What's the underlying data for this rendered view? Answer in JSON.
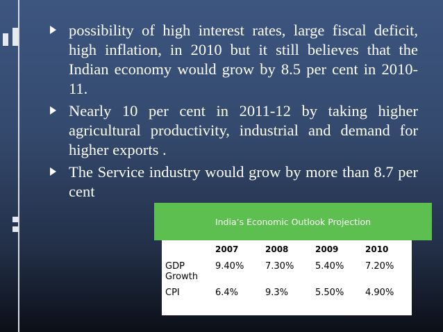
{
  "bullets": [
    "possibility of high interest rates, large fiscal deficit, high inflation, in 2010 but it still believes that the Indian economy would grow by 8.5 per cent in 2010-11.",
    "Nearly 10 per cent in 2011-12 by taking higher agricultural productivity, industrial and demand for higher exports .",
    "The Service industry would grow by more than 8.7 per cent"
  ],
  "table": {
    "title": "India’s Economic Outlook Projection",
    "headers": [
      "",
      "2007",
      "2008",
      "2009",
      "2010"
    ],
    "rows": [
      [
        "GDP Growth",
        "9.40%",
        "7.30%",
        "5.40%",
        "7.20%"
      ],
      [
        "CPI",
        "6.4%",
        "9.3%",
        "5.50%",
        "4.90%"
      ]
    ]
  },
  "colors": {
    "background_top": "#3d5680",
    "background_bottom": "#0b0f18",
    "banner": "#5cbf4f",
    "text": "#ffffff"
  }
}
